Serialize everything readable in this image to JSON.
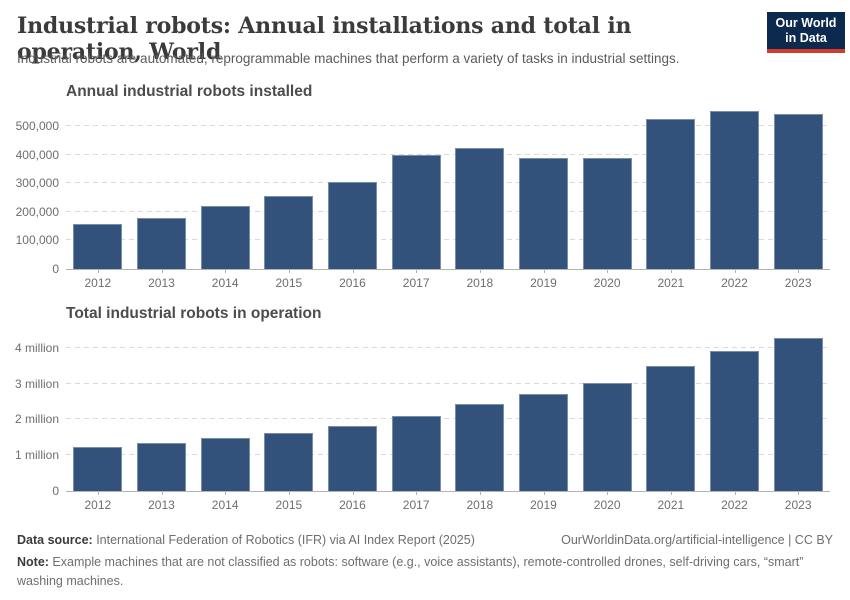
{
  "header": {
    "title": "Industrial robots: Annual installations and total in operation, World",
    "subtitle": "Industrial robots are automated, reprogrammable machines that perform a variety of tasks in industrial settings.",
    "logo": {
      "line1": "Our World",
      "line2": "in Data",
      "bg_color": "#0b2a4e",
      "accent_color": "#d43b2b"
    }
  },
  "chart_data": [
    {
      "type": "bar",
      "title": "Annual industrial robots installed",
      "categories": [
        "2012",
        "2013",
        "2014",
        "2015",
        "2016",
        "2017",
        "2018",
        "2019",
        "2020",
        "2021",
        "2022",
        "2023"
      ],
      "values": [
        159000,
        178000,
        221000,
        254000,
        304000,
        400000,
        423000,
        387000,
        390000,
        526000,
        553000,
        541000
      ],
      "xlabel": "",
      "ylabel": "",
      "ylim": [
        0,
        560000
      ],
      "yticks": [
        {
          "value": 0,
          "label": "0"
        },
        {
          "value": 100000,
          "label": "100,000"
        },
        {
          "value": 200000,
          "label": "200,000"
        },
        {
          "value": 300000,
          "label": "300,000"
        },
        {
          "value": 400000,
          "label": "400,000"
        },
        {
          "value": 500000,
          "label": "500,000"
        }
      ],
      "bar_color": "#33527b",
      "grid": true,
      "legend": "none"
    },
    {
      "type": "bar",
      "title": "Total industrial robots in operation",
      "categories": [
        "2012",
        "2013",
        "2014",
        "2015",
        "2016",
        "2017",
        "2018",
        "2019",
        "2020",
        "2021",
        "2022",
        "2023"
      ],
      "values": [
        1235000,
        1332000,
        1472000,
        1632000,
        1828000,
        2098000,
        2440000,
        2722000,
        3015000,
        3479000,
        3904000,
        4282000
      ],
      "xlabel": "",
      "ylabel": "",
      "ylim": [
        0,
        4470000
      ],
      "yticks": [
        {
          "value": 0,
          "label": "0"
        },
        {
          "value": 1000000,
          "label": "1 million"
        },
        {
          "value": 2000000,
          "label": "2 million"
        },
        {
          "value": 3000000,
          "label": "3 million"
        },
        {
          "value": 4000000,
          "label": "4 million"
        }
      ],
      "bar_color": "#33527b",
      "grid": true,
      "legend": "none"
    }
  ],
  "footer": {
    "data_source_label": "Data source:",
    "data_source_text": " International Federation of Robotics (IFR) via AI Index Report (2025)",
    "attribution": "OurWorldinData.org/artificial-intelligence | CC BY",
    "note_label": "Note:",
    "note_text": " Example machines that are not classified as robots: software (e.g., voice assistants), remote-controlled drones, self-driving cars, “smart” washing machines."
  }
}
